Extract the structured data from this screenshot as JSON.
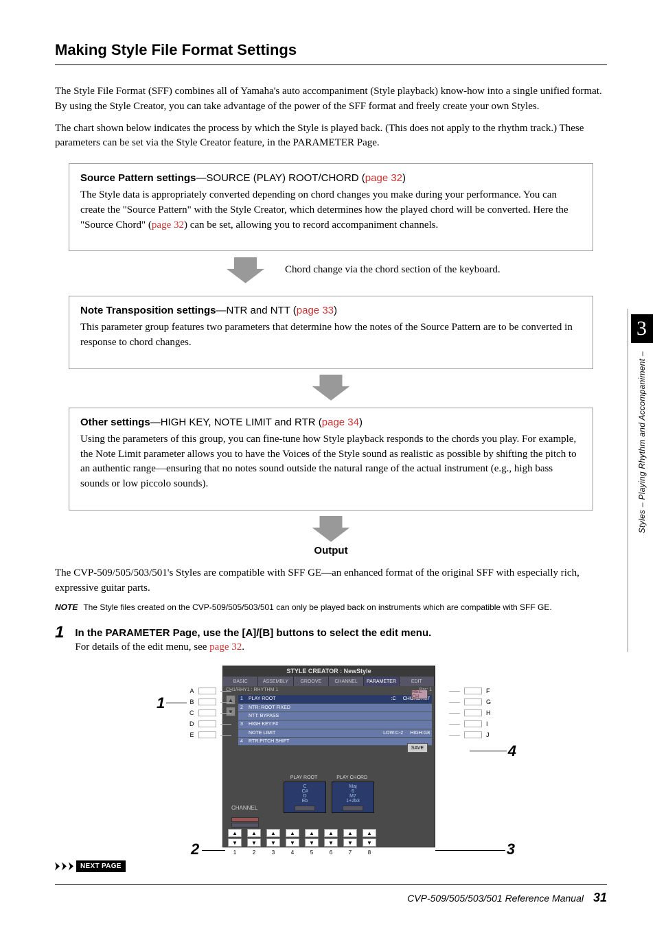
{
  "heading": "Making Style File Format Settings",
  "intro1": "The Style File Format (SFF) combines all of Yamaha's auto accompaniment (Style playback) know-how into a single unified format. By using the Style Creator, you can take advantage of the power of the SFF format and freely create your own Styles.",
  "intro2": "The chart shown below indicates the process by which the Style is played back. (This does not apply to the rhythm track.) These parameters can be set via the Style Creator feature, in the PARAMETER Page.",
  "box1": {
    "title_bold": "Source Pattern settings",
    "title_rest": "—SOURCE (PLAY) ROOT/CHORD (",
    "title_link": "page 32",
    "title_close": ")",
    "body_a": "The Style data is appropriately converted depending on chord changes you make during your performance. You can create the \"Source Pattern\" with the Style Creator, which determines how the played chord will be converted. Here the \"Source Chord\" (",
    "body_link": "page 32",
    "body_b": ") can be set, allowing you to record accompaniment channels."
  },
  "arrow1_label": "Chord change via the chord section of the keyboard.",
  "box2": {
    "title_bold": "Note Transposition settings",
    "title_rest": "—NTR and NTT (",
    "title_link": "page 33",
    "title_close": ")",
    "body": "This parameter group features two parameters that determine how the notes of the Source Pattern are to be converted in response to chord changes."
  },
  "box3": {
    "title_bold": "Other settings",
    "title_rest": "—HIGH KEY, NOTE LIMIT and RTR (",
    "title_link": "page 34",
    "title_close": ")",
    "body": "Using the parameters of this group, you can fine-tune how Style playback responds to the chords you play. For example, the Note Limit parameter allows you to have the Voices of the Style sound as realistic as possible by shifting the pitch to an authentic range—ensuring that no notes sound outside the natural range of the actual instrument (e.g., high bass sounds or low piccolo sounds)."
  },
  "output_label": "Output",
  "compat_text": "The CVP-509/505/503/501's Styles are compatible with SFF GE—an enhanced format of the original SFF with especially rich, expressive guitar parts.",
  "note": {
    "tag": "NOTE",
    "text": "The Style files created on the CVP-509/505/503/501 can only be played back on instruments which are compatible with SFF GE."
  },
  "step1": {
    "num": "1",
    "title": "In the PARAMETER Page, use the [A]/[B] buttons to select the edit menu.",
    "body_a": "For details of the edit menu, see ",
    "body_link": "page 32",
    "body_b": "."
  },
  "fig": {
    "title": "STYLE CREATOR : NewStyle",
    "tabs": [
      "BASIC",
      "ASSEMBLY",
      "GROOVE",
      "CHANNEL",
      "PARAMETER",
      "EDIT"
    ],
    "active_tab": 4,
    "bar_left": "CH1/RHY1 : RHYTHM 1",
    "bar_right": "Bar: 1",
    "rows": [
      {
        "n": "1",
        "a": "PLAY ROOT",
        "b": ":C",
        "c": "CHORD: M7",
        "sel": true
      },
      {
        "n": "2",
        "a": "NTR: ROOT FIXED",
        "b": "",
        "c": ""
      },
      {
        "n": "",
        "a": "NTT: BYPASS",
        "b": "",
        "c": ""
      },
      {
        "n": "3",
        "a": "HIGH KEY:F#",
        "b": "",
        "c": ""
      },
      {
        "n": "",
        "a": "NOTE LIMIT",
        "b": "LOW:C-2",
        "c": "HIGH:G8"
      },
      {
        "n": "4",
        "a": "RTR:PITCH SHIFT",
        "b": "",
        "c": ""
      }
    ],
    "rec_label": "REC CH",
    "save_label": "SAVE",
    "chord_labels": [
      "PLAY ROOT",
      "PLAY CHORD"
    ],
    "chord_left": [
      "C",
      "C#",
      "D",
      "Eb"
    ],
    "chord_right": [
      "Maj",
      "6",
      "M7",
      "1+2b3"
    ],
    "channel_label": "CHANNEL",
    "left_letters": [
      "A",
      "B",
      "C",
      "D",
      "E"
    ],
    "right_letters": [
      "F",
      "G",
      "H",
      "I",
      "J"
    ],
    "bottom_nums": [
      "1",
      "2",
      "3",
      "4",
      "5",
      "6",
      "7",
      "8"
    ]
  },
  "callouts": {
    "c1": "1",
    "c2": "2",
    "c3": "3",
    "c4": "4"
  },
  "next_label": "NEXT PAGE",
  "side_tab": {
    "num": "3",
    "text": "Styles – Playing Rhythm and Accompaniment –"
  },
  "footer": {
    "title": "CVP-509/505/503/501 Reference Manual",
    "page": "31"
  }
}
